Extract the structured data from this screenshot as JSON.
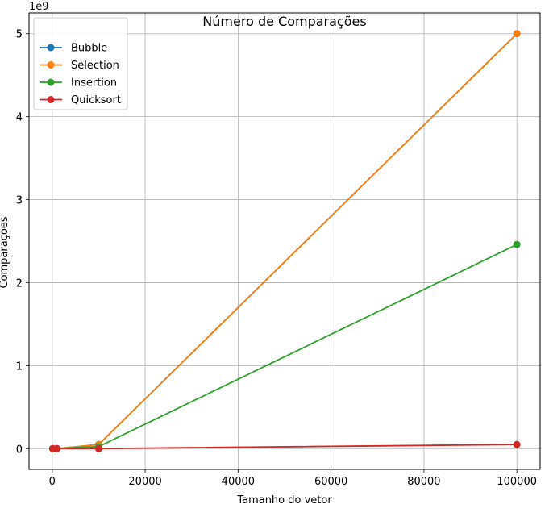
{
  "chart_data": {
    "type": "line",
    "title": "Número de Comparações",
    "xlabel": "Tamanho do vetor",
    "ylabel": "Comparações",
    "y_offset_label": "1e9",
    "xlim": [
      -5000,
      105000
    ],
    "ylim": [
      -250000000,
      5250000000
    ],
    "x_ticks": [
      0,
      20000,
      40000,
      60000,
      80000,
      100000
    ],
    "x_tick_labels": [
      "0",
      "20000",
      "40000",
      "60000",
      "80000",
      "100000"
    ],
    "y_ticks": [
      0,
      1000000000,
      2000000000,
      3000000000,
      4000000000,
      5000000000
    ],
    "y_tick_labels": [
      "0",
      "1",
      "2",
      "3",
      "4",
      "5"
    ],
    "grid": true,
    "legend_position": "top-left",
    "x": [
      100,
      1000,
      10000,
      100000
    ],
    "series": [
      {
        "name": "Bubble",
        "color": "#1f77b4",
        "values": [
          4950,
          499500,
          49995000,
          4999950000
        ]
      },
      {
        "name": "Selection",
        "color": "#ff7f0e",
        "values": [
          4950,
          499500,
          49995000,
          4999950000
        ]
      },
      {
        "name": "Insertion",
        "color": "#2ca02c",
        "values": [
          2500,
          250000,
          25000000,
          2460000000
        ]
      },
      {
        "name": "Quicksort",
        "color": "#d62728",
        "values": [
          600,
          12000,
          160000,
          50000000
        ]
      }
    ]
  }
}
